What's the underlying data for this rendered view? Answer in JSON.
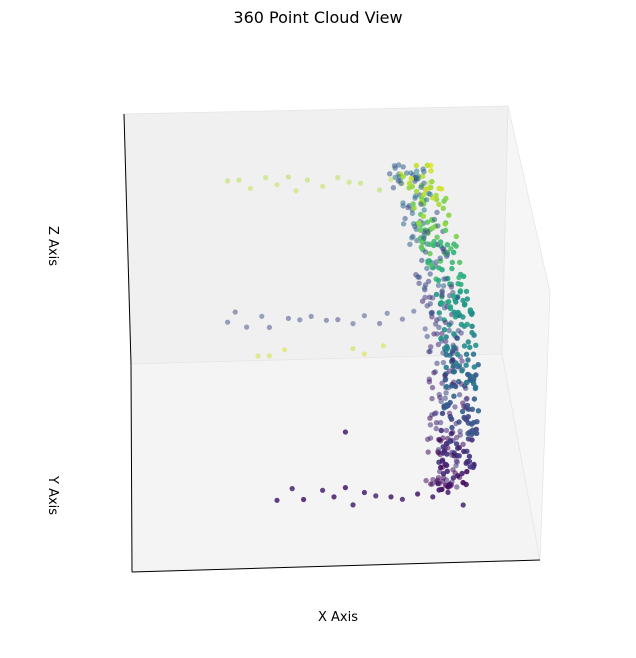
{
  "chart_data": {
    "type": "scatter",
    "title": "360 Point Cloud View",
    "xlabel": "X Axis",
    "ylabel": "Y Axis",
    "zlabel": "Z Axis",
    "colormap": "viridis",
    "grid": false,
    "ticks_visible": false,
    "colors": {
      "pane_back": "#f0f0f0",
      "pane_floor": "#f4f4f4",
      "pane_side": "#f6f6f6",
      "axis_line": "#000000"
    },
    "views": [
      {
        "name": "upper",
        "opacity": 0.45,
        "strip_points": [
          {
            "x": 0.12,
            "c": 0.88
          },
          {
            "x": 0.15,
            "c": 0.88
          },
          {
            "x": 0.18,
            "c": 0.9
          },
          {
            "x": 0.22,
            "c": 0.88
          },
          {
            "x": 0.25,
            "c": 0.9
          },
          {
            "x": 0.28,
            "c": 0.87
          },
          {
            "x": 0.3,
            "c": 0.9
          },
          {
            "x": 0.33,
            "c": 0.88
          },
          {
            "x": 0.37,
            "c": 0.9
          },
          {
            "x": 0.41,
            "c": 0.88
          },
          {
            "x": 0.44,
            "c": 0.9
          },
          {
            "x": 0.47,
            "c": 0.88
          },
          {
            "x": 0.52,
            "c": 0.87
          },
          {
            "x": 0.55,
            "c": 0.9
          },
          {
            "x": 0.58,
            "c": 0.9
          },
          {
            "x": 0.62,
            "c": 0.88
          },
          {
            "x": 0.65,
            "c": 0.9
          }
        ]
      },
      {
        "name": "middle",
        "opacity": 0.5,
        "strip_points": [
          {
            "x": 0.12,
            "c": 0.22
          },
          {
            "x": 0.14,
            "c": 0.2
          },
          {
            "x": 0.17,
            "c": 0.22
          },
          {
            "x": 0.21,
            "c": 0.25
          },
          {
            "x": 0.23,
            "c": 0.22
          },
          {
            "x": 0.28,
            "c": 0.2
          },
          {
            "x": 0.31,
            "c": 0.24
          },
          {
            "x": 0.34,
            "c": 0.22
          },
          {
            "x": 0.38,
            "c": 0.22
          },
          {
            "x": 0.41,
            "c": 0.2
          },
          {
            "x": 0.45,
            "c": 0.24
          },
          {
            "x": 0.48,
            "c": 0.22
          },
          {
            "x": 0.52,
            "c": 0.2
          },
          {
            "x": 0.54,
            "c": 0.24
          },
          {
            "x": 0.58,
            "c": 0.22
          },
          {
            "x": 0.61,
            "c": 0.24
          },
          {
            "x": 0.64,
            "c": 0.22
          },
          {
            "x": 0.2,
            "c": 0.94
          },
          {
            "x": 0.23,
            "c": 0.93
          },
          {
            "x": 0.27,
            "c": 0.94
          },
          {
            "x": 0.45,
            "c": 0.92
          },
          {
            "x": 0.48,
            "c": 0.94
          },
          {
            "x": 0.53,
            "c": 0.93
          }
        ]
      },
      {
        "name": "lower",
        "opacity": 0.85,
        "strip_points": [
          {
            "x": 0.25,
            "c": 0.08
          },
          {
            "x": 0.29,
            "c": 0.1
          },
          {
            "x": 0.32,
            "c": 0.06
          },
          {
            "x": 0.37,
            "c": 0.1
          },
          {
            "x": 0.4,
            "c": 0.08
          },
          {
            "x": 0.43,
            "c": 0.06
          },
          {
            "x": 0.45,
            "c": 0.1
          },
          {
            "x": 0.48,
            "c": 0.08
          },
          {
            "x": 0.51,
            "c": 0.12
          },
          {
            "x": 0.55,
            "c": 0.08
          },
          {
            "x": 0.58,
            "c": 0.1
          },
          {
            "x": 0.62,
            "c": 0.06
          },
          {
            "x": 0.66,
            "c": 0.1
          },
          {
            "x": 0.7,
            "c": 0.08
          },
          {
            "x": 0.74,
            "c": 0.1
          },
          {
            "x": 0.43,
            "c": 0.08
          }
        ]
      }
    ],
    "main_cloud": {
      "n_points": 520,
      "value_range": [
        0,
        1
      ],
      "seed": 42
    }
  }
}
